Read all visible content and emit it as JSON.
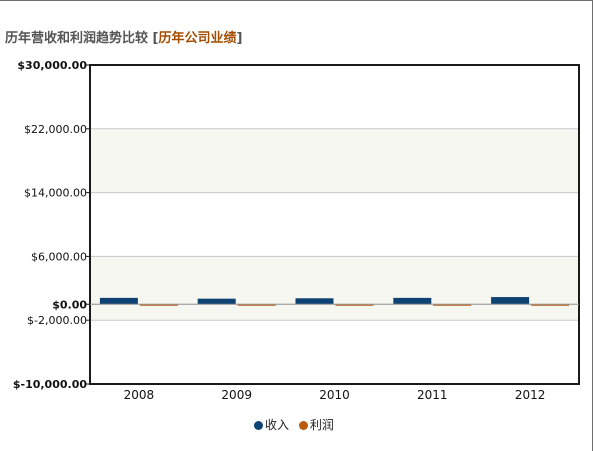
{
  "header": {
    "title": "历年营收和利润趋势比较",
    "bracket_open": "[",
    "link_label": "历年公司业绩",
    "bracket_close": "]"
  },
  "legend": {
    "revenue_label": "收入",
    "profit_label": "利润"
  },
  "colors": {
    "revenue": "#0e4272",
    "profit": "#b85a10",
    "link": "#a34d00",
    "band": "#f7f7f2",
    "grid": "#c8c8c8",
    "axis": "#1a1a1a"
  },
  "chart_data": {
    "type": "bar",
    "categories": [
      "2008",
      "2009",
      "2010",
      "2011",
      "2012"
    ],
    "series": [
      {
        "name": "收入",
        "values": [
          800,
          700,
          750,
          800,
          900
        ]
      },
      {
        "name": "利润",
        "values": [
          -60,
          -50,
          -55,
          -60,
          -60
        ]
      }
    ],
    "ylim": [
      -10000,
      30000
    ],
    "yticks": [
      30000,
      22000,
      14000,
      6000,
      0,
      -2000,
      -10000
    ],
    "ytick_labels": [
      "$30,000.00",
      "$22,000.00",
      "$14,000.00",
      "$6,000.00",
      "$0.00",
      "$-2,000.00",
      "$-10,000.00"
    ],
    "bold_ticks": [
      30000,
      0,
      -10000
    ],
    "bands": [
      [
        -2000,
        6000
      ],
      [
        14000,
        22000
      ]
    ],
    "grid": true,
    "legend_position": "bottom"
  }
}
